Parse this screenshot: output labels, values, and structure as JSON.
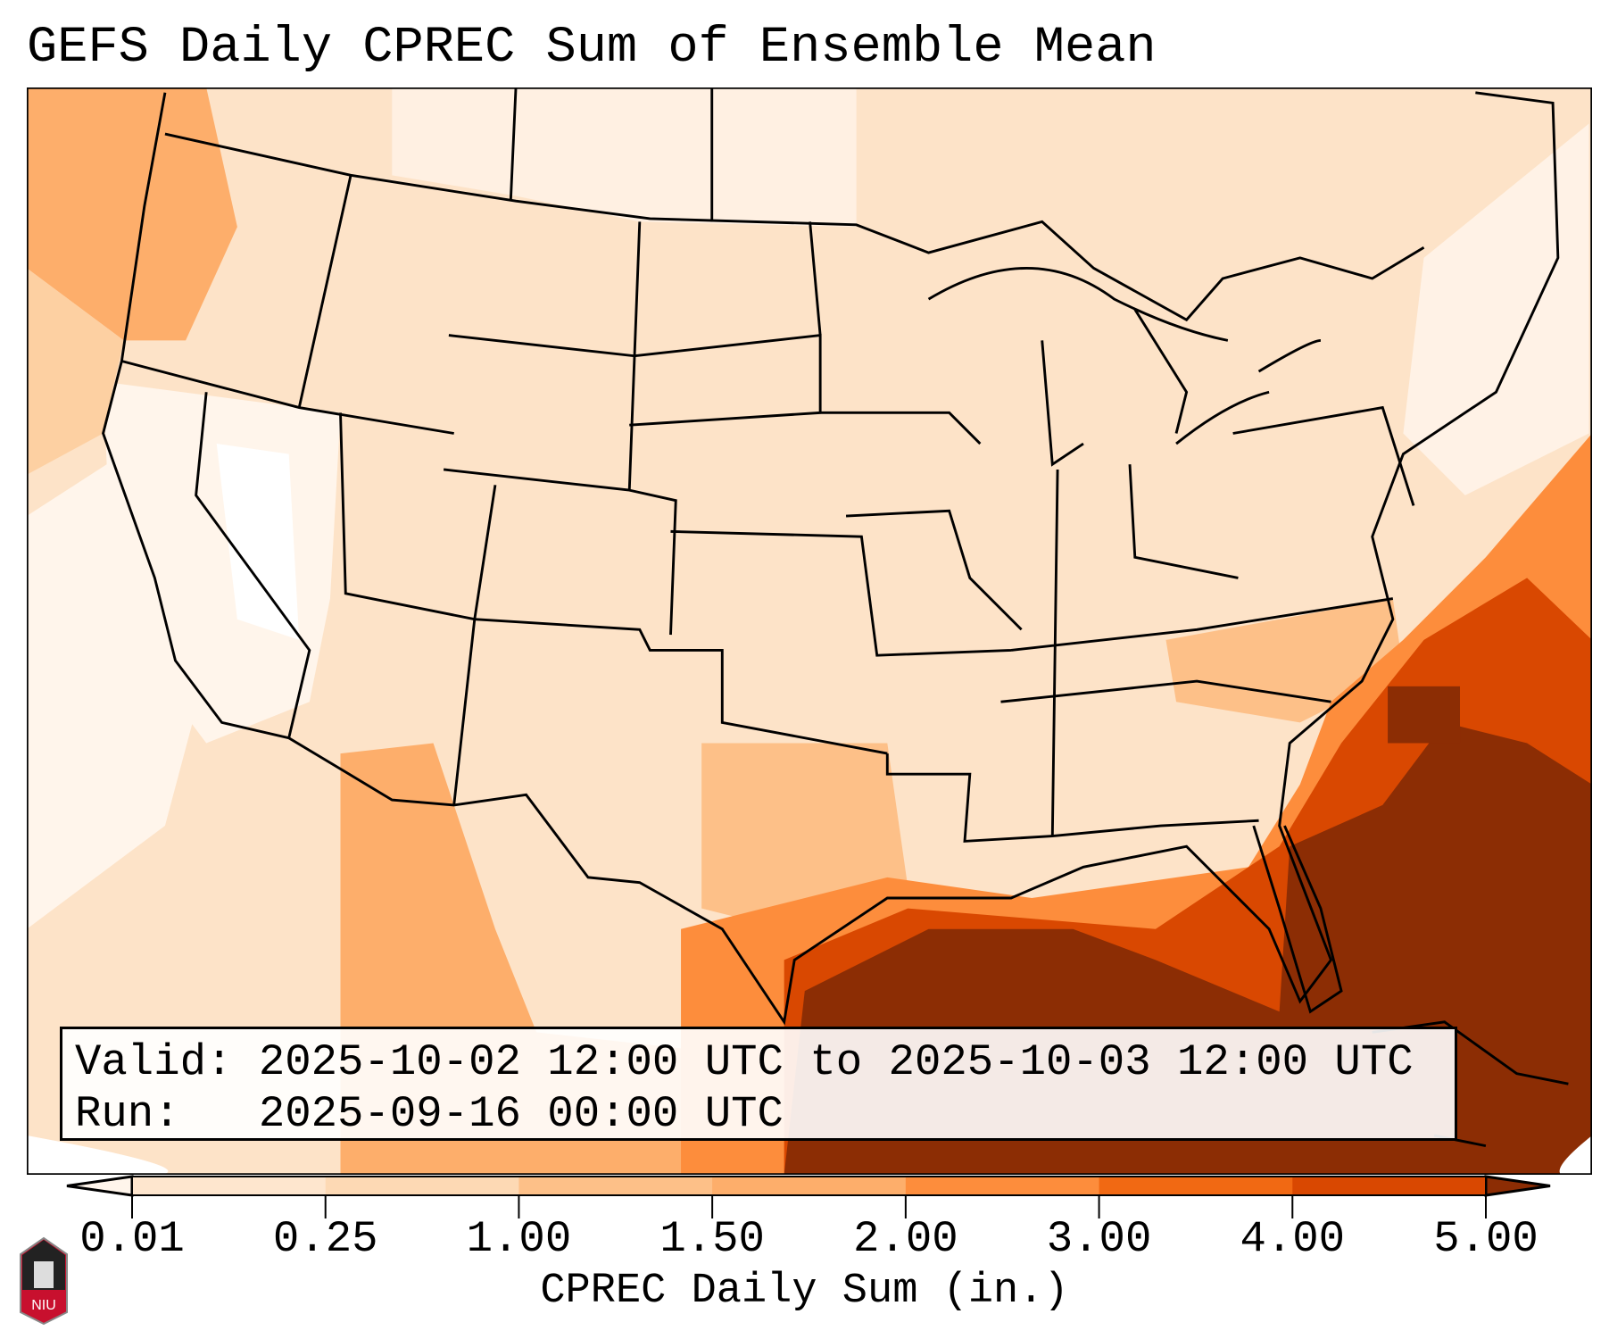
{
  "title": "GEFS Daily CPREC Sum of Ensemble Mean",
  "infobox": {
    "valid_line": "Valid: 2025-10-02 12:00 UTC to 2025-10-03 12:00 UTC",
    "run_line": "Run:   2025-09-16 00:00 UTC"
  },
  "logo": {
    "text": "NIU"
  },
  "chart_data": {
    "type": "heatmap",
    "title": "GEFS Daily CPREC Sum of Ensemble Mean",
    "region": "Continental United States",
    "colorbar": {
      "label": "CPREC Daily Sum (in.)",
      "ticks": [
        "0.01",
        "0.25",
        "1.00",
        "1.50",
        "2.00",
        "3.00",
        "4.00",
        "5.00"
      ],
      "bounds": [
        0.01,
        0.25,
        1.0,
        1.5,
        2.0,
        3.0,
        4.0,
        5.0
      ],
      "colors": [
        "#fee6ce",
        "#fdd9b4",
        "#fdc088",
        "#fdae6b",
        "#fd8d3c",
        "#f16913",
        "#d94801"
      ],
      "under_color": "#fff5eb",
      "over_color": "#8c2d04",
      "extend": "both"
    },
    "features": {
      "heaviest": "Gulf of Mexico, Florida peninsula and western Atlantic (>5 in.)",
      "moderate": "Texas, Mexico west coast, Carolinas coast (1-3 in.)",
      "light": "Most of interior US (0.01-0.25 in.)"
    }
  }
}
